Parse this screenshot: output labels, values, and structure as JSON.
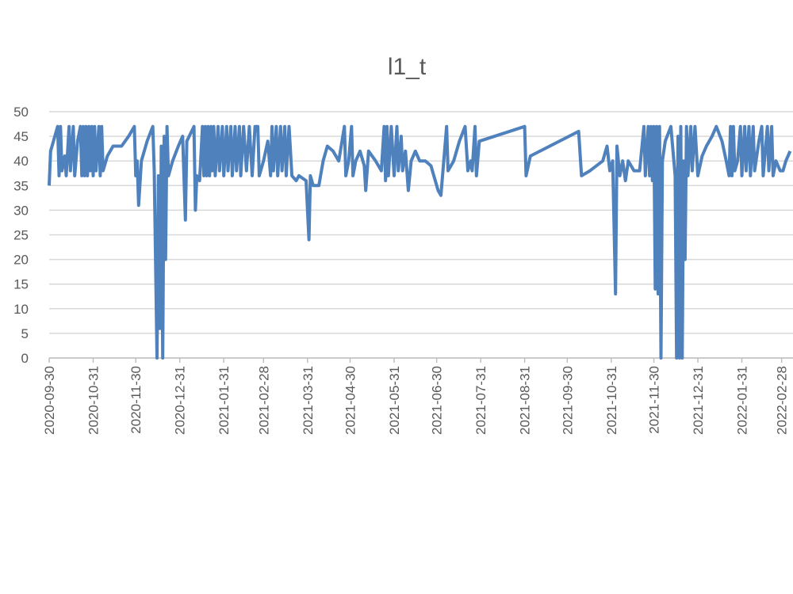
{
  "chart_data": {
    "type": "line",
    "title": "l1_t",
    "x": [
      "2020-09-30",
      "2020-10-01",
      "2020-10-03",
      "2020-10-06",
      "2020-10-07",
      "2020-10-08",
      "2020-10-09",
      "2020-10-11",
      "2020-10-12",
      "2020-10-14",
      "2020-10-15",
      "2020-10-17",
      "2020-10-18",
      "2020-10-20",
      "2020-10-22",
      "2020-10-23",
      "2020-10-24",
      "2020-10-25",
      "2020-10-26",
      "2020-10-27",
      "2020-10-28",
      "2020-10-29",
      "2020-10-30",
      "2020-10-31",
      "2020-11-01",
      "2020-11-02",
      "2020-11-04",
      "2020-11-05",
      "2020-11-06",
      "2020-11-07",
      "2020-11-10",
      "2020-11-14",
      "2020-11-20",
      "2020-11-25",
      "2020-11-29",
      "2020-11-30",
      "2020-12-01",
      "2020-12-02",
      "2020-12-04",
      "2020-12-08",
      "2020-12-12",
      "2020-12-13",
      "2020-12-15",
      "2020-12-16",
      "2020-12-17",
      "2020-12-18",
      "2020-12-19",
      "2020-12-20",
      "2020-12-21",
      "2020-12-22",
      "2020-12-23",
      "2020-12-26",
      "2020-12-30",
      "2021-01-02",
      "2021-01-04",
      "2021-01-05",
      "2021-01-10",
      "2021-01-11",
      "2021-01-12",
      "2021-01-14",
      "2021-01-16",
      "2021-01-17",
      "2021-01-18",
      "2021-01-19",
      "2021-01-20",
      "2021-01-21",
      "2021-01-22",
      "2021-01-23",
      "2021-01-24",
      "2021-01-25",
      "2021-01-27",
      "2021-01-28",
      "2021-01-30",
      "2021-01-31",
      "2021-02-02",
      "2021-02-03",
      "2021-02-05",
      "2021-02-06",
      "2021-02-08",
      "2021-02-09",
      "2021-02-11",
      "2021-02-12",
      "2021-02-14",
      "2021-02-16",
      "2021-02-18",
      "2021-02-20",
      "2021-02-22",
      "2021-02-24",
      "2021-02-25",
      "2021-02-28",
      "2021-03-03",
      "2021-03-05",
      "2021-03-06",
      "2021-03-07",
      "2021-03-09",
      "2021-03-10",
      "2021-03-12",
      "2021-03-13",
      "2021-03-15",
      "2021-03-16",
      "2021-03-18",
      "2021-03-20",
      "2021-03-23",
      "2021-03-25",
      "2021-03-30",
      "2021-04-01",
      "2021-04-02",
      "2021-04-04",
      "2021-04-08",
      "2021-04-11",
      "2021-04-14",
      "2021-04-18",
      "2021-04-22",
      "2021-04-26",
      "2021-04-27",
      "2021-04-29",
      "2021-05-01",
      "2021-05-02",
      "2021-05-04",
      "2021-05-07",
      "2021-05-10",
      "2021-05-11",
      "2021-05-13",
      "2021-05-18",
      "2021-05-22",
      "2021-05-24",
      "2021-05-25",
      "2021-05-26",
      "2021-05-27",
      "2021-05-29",
      "2021-05-31",
      "2021-06-02",
      "2021-06-03",
      "2021-06-05",
      "2021-06-06",
      "2021-06-08",
      "2021-06-10",
      "2021-06-12",
      "2021-06-15",
      "2021-06-18",
      "2021-06-22",
      "2021-06-26",
      "2021-06-28",
      "2021-07-01",
      "2021-07-03",
      "2021-07-05",
      "2021-07-07",
      "2021-07-08",
      "2021-07-12",
      "2021-07-16",
      "2021-07-20",
      "2021-07-22",
      "2021-07-24",
      "2021-07-25",
      "2021-07-27",
      "2021-07-28",
      "2021-07-30",
      "2021-08-31",
      "2021-09-01",
      "2021-09-04",
      "2021-10-08",
      "2021-10-10",
      "2021-10-16",
      "2021-10-25",
      "2021-10-28",
      "2021-10-30",
      "2021-11-01",
      "2021-11-03",
      "2021-11-04",
      "2021-11-06",
      "2021-11-08",
      "2021-11-10",
      "2021-11-12",
      "2021-11-16",
      "2021-11-20",
      "2021-11-23",
      "2021-11-24",
      "2021-11-26",
      "2021-11-27",
      "2021-11-28",
      "2021-11-29",
      "2021-11-30",
      "2021-12-01",
      "2021-12-02",
      "2021-12-03",
      "2021-12-04",
      "2021-12-05",
      "2021-12-06",
      "2021-12-08",
      "2021-12-12",
      "2021-12-15",
      "2021-12-16",
      "2021-12-17",
      "2021-12-18",
      "2021-12-19",
      "2021-12-20",
      "2021-12-21",
      "2021-12-22",
      "2021-12-23",
      "2021-12-24",
      "2021-12-26",
      "2021-12-27",
      "2021-12-29",
      "2021-12-31",
      "2022-01-03",
      "2022-01-06",
      "2022-01-10",
      "2022-01-13",
      "2022-01-17",
      "2022-01-20",
      "2022-01-22",
      "2022-01-23",
      "2022-01-24",
      "2022-01-25",
      "2022-01-26",
      "2022-01-28",
      "2022-01-30",
      "2022-01-31",
      "2022-02-02",
      "2022-02-03",
      "2022-02-05",
      "2022-02-06",
      "2022-02-08",
      "2022-02-09",
      "2022-02-12",
      "2022-02-14",
      "2022-02-15",
      "2022-02-18",
      "2022-02-19",
      "2022-02-21",
      "2022-02-22",
      "2022-02-24",
      "2022-02-27",
      "2022-03-01",
      "2022-03-03",
      "2022-03-06"
    ],
    "values": [
      35,
      42,
      44,
      47,
      37,
      47,
      38,
      41,
      37,
      47,
      38,
      47,
      37,
      44,
      47,
      37,
      47,
      37,
      47,
      37,
      47,
      38,
      47,
      37,
      47,
      38,
      47,
      37,
      47,
      38,
      41,
      43,
      43,
      45,
      47,
      37,
      40,
      31,
      40,
      44,
      47,
      38,
      0,
      37,
      6,
      43,
      0,
      45,
      20,
      47,
      37,
      40,
      43,
      45,
      28,
      44,
      47,
      30,
      37,
      36,
      47,
      37,
      47,
      37,
      47,
      37,
      47,
      38,
      47,
      37,
      47,
      38,
      47,
      37,
      47,
      38,
      47,
      37,
      47,
      38,
      47,
      37,
      47,
      38,
      47,
      37,
      47,
      47,
      37,
      40,
      44,
      37,
      47,
      38,
      47,
      37,
      47,
      38,
      47,
      37,
      47,
      37,
      36,
      37,
      36,
      24,
      37,
      35,
      35,
      40,
      43,
      42,
      40,
      47,
      37,
      40,
      47,
      37,
      40,
      42,
      39,
      34,
      42,
      40,
      38,
      47,
      36,
      47,
      37,
      47,
      37,
      47,
      38,
      45,
      38,
      42,
      34,
      40,
      42,
      40,
      40,
      39,
      37,
      34,
      33,
      40,
      47,
      38,
      40,
      44,
      47,
      38,
      40,
      38,
      47,
      37,
      44,
      47,
      37,
      41,
      46,
      37,
      38,
      40,
      43,
      38,
      40,
      13,
      43,
      37,
      40,
      36,
      40,
      38,
      38,
      47,
      37,
      47,
      37,
      47,
      36,
      47,
      14,
      47,
      13,
      47,
      0,
      40,
      44,
      47,
      37,
      0,
      45,
      0,
      47,
      0,
      40,
      20,
      47,
      37,
      47,
      38,
      47,
      37,
      41,
      43,
      45,
      47,
      44,
      40,
      37,
      47,
      37,
      47,
      38,
      40,
      47,
      37,
      47,
      38,
      47,
      37,
      47,
      38,
      44,
      47,
      37,
      47,
      38,
      47,
      37,
      40,
      38,
      38,
      40,
      42
    ],
    "color": "#4f81bd",
    "xlim": [
      "2020-09-30",
      "2022-03-10"
    ],
    "xticks": [
      "2020-09-30",
      "2020-10-31",
      "2020-11-30",
      "2020-12-31",
      "2021-01-31",
      "2021-02-28",
      "2021-03-31",
      "2021-04-30",
      "2021-05-31",
      "2021-06-30",
      "2021-07-31",
      "2021-08-31",
      "2021-09-30",
      "2021-10-31",
      "2021-11-30",
      "2021-12-31",
      "2022-01-31",
      "2022-02-28"
    ],
    "ylim": [
      0,
      50
    ],
    "yticks": [
      0,
      5,
      10,
      15,
      20,
      25,
      30,
      35,
      40,
      45,
      50
    ],
    "grid": true
  }
}
